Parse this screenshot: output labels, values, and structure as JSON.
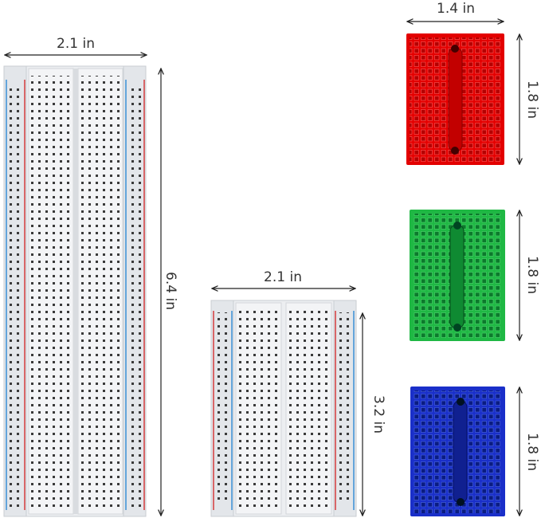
{
  "full_board": {
    "width": "2.1 in",
    "height": "6.4 in"
  },
  "half_board": {
    "width": "2.1 in",
    "height": "3.2 in"
  },
  "mini_boards": [
    {
      "width": "1.4 in",
      "height": "1.8 in"
    },
    {
      "height": "1.8 in"
    },
    {
      "height": "1.8 in"
    }
  ]
}
